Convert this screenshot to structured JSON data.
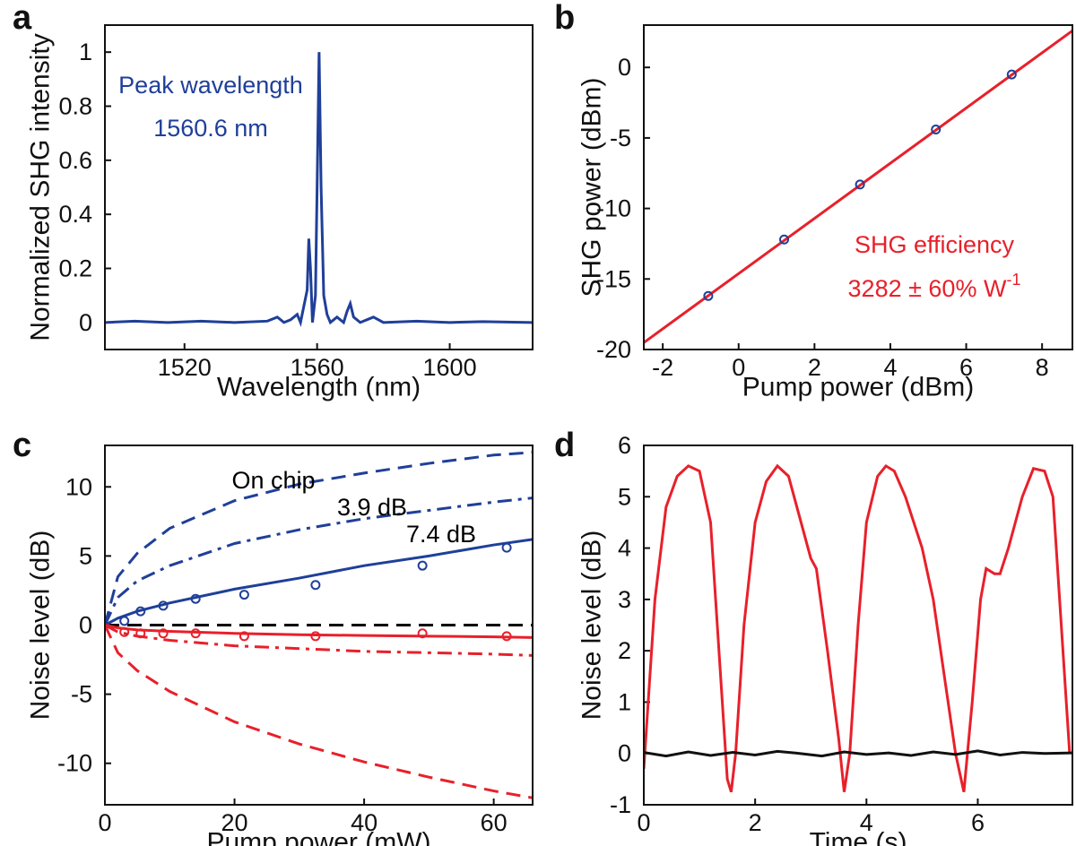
{
  "chart_data": [
    {
      "type": "line",
      "panel": "a",
      "xlabel": "Wavelength (nm)",
      "ylabel": "Normalized SHG intensity",
      "xlim": [
        1496,
        1625
      ],
      "ylim": [
        -0.1,
        1.1
      ],
      "xticks": [
        1520,
        1560,
        1600
      ],
      "yticks": [
        0,
        0.2,
        0.4,
        0.6,
        0.8,
        1
      ],
      "series": [
        {
          "color": "#1f3f99",
          "style": "solid",
          "marker": "none",
          "x": [
            1496,
            1505,
            1515,
            1525,
            1535,
            1545,
            1548,
            1550,
            1552,
            1554,
            1555,
            1556,
            1557,
            1557.5,
            1558,
            1558.6,
            1559.5,
            1560,
            1560.6,
            1561.2,
            1562,
            1563,
            1564,
            1566,
            1568,
            1569,
            1570,
            1571,
            1573,
            1575,
            1577,
            1580,
            1590,
            1600,
            1610,
            1625
          ],
          "values": [
            0,
            0.005,
            0,
            0.005,
            0,
            0.005,
            0.02,
            0,
            0.01,
            0.03,
            0,
            0.06,
            0.12,
            0.31,
            0.2,
            0,
            0.1,
            0.5,
            1,
            0.5,
            0.1,
            0.03,
            0,
            0.02,
            0,
            0.04,
            0.07,
            0.02,
            0,
            0.01,
            0.02,
            0,
            0.005,
            0,
            0.003,
            0
          ]
        }
      ],
      "annotations": [
        {
          "text": "Peak wavelength",
          "color": "#1f3f99"
        },
        {
          "text": "1560.6 nm",
          "color": "#1f3f99"
        }
      ]
    },
    {
      "type": "scatter",
      "panel": "b",
      "xlabel": "Pump power (dBm)",
      "ylabel": "SHG power (dBm)",
      "xlim": [
        -2.5,
        8.8
      ],
      "ylim": [
        -20,
        3
      ],
      "xticks": [
        -2,
        0,
        2,
        4,
        6,
        8
      ],
      "yticks": [
        -20,
        -15,
        -10,
        -5,
        0
      ],
      "series": [
        {
          "color": "#e8202a",
          "style": "solid",
          "marker": "none",
          "x": [
            -2.75,
            8.8
          ],
          "values": [
            -20,
            2.6
          ]
        },
        {
          "color": "#1f3f99",
          "style": "none",
          "marker": "circle",
          "x": [
            -0.8,
            1.2,
            3.2,
            5.2,
            7.2
          ],
          "values": [
            -16.2,
            -12.2,
            -8.3,
            -4.4,
            -0.5
          ]
        }
      ],
      "annotations": [
        {
          "text": "SHG efficiency",
          "color": "#e8202a"
        },
        {
          "text": "3282 ± 60% W",
          "sup": "-1",
          "color": "#e8202a"
        }
      ]
    },
    {
      "type": "line",
      "panel": "c",
      "xlabel": "Pump power (mW)",
      "ylabel": "Noise level (dB)",
      "xlim": [
        0,
        66
      ],
      "ylim": [
        -13,
        13
      ],
      "xticks": [
        0,
        20,
        40,
        60
      ],
      "yticks": [
        -10,
        -5,
        0,
        5,
        10
      ],
      "series": [
        {
          "color": "#000000",
          "style": "dashed",
          "marker": "none",
          "x": [
            0,
            66
          ],
          "values": [
            0,
            0
          ]
        },
        {
          "color": "#1f3f99",
          "style": "dashed",
          "marker": "none",
          "x": [
            0,
            2,
            5,
            10,
            20,
            30,
            40,
            50,
            60,
            66
          ],
          "values": [
            0,
            3.5,
            5.2,
            7,
            9,
            10.2,
            11,
            11.7,
            12.3,
            12.5
          ]
        },
        {
          "color": "#1f3f99",
          "style": "dashdot",
          "marker": "none",
          "x": [
            0,
            2,
            5,
            10,
            20,
            30,
            40,
            50,
            60,
            66
          ],
          "values": [
            0,
            2,
            3.2,
            4.3,
            5.9,
            6.9,
            7.7,
            8.3,
            8.9,
            9.2
          ]
        },
        {
          "color": "#1f3f99",
          "style": "solid",
          "marker": "none",
          "x": [
            0,
            2,
            5,
            10,
            20,
            30,
            40,
            50,
            60,
            66
          ],
          "values": [
            0,
            0.5,
            1,
            1.6,
            2.6,
            3.4,
            4.3,
            5,
            5.8,
            6.2
          ]
        },
        {
          "color": "#e8202a",
          "style": "dashed",
          "marker": "none",
          "x": [
            0,
            2,
            5,
            10,
            20,
            30,
            40,
            50,
            60,
            66
          ],
          "values": [
            0,
            -2,
            -3.3,
            -4.8,
            -7,
            -8.6,
            -9.9,
            -11,
            -12,
            -12.5
          ]
        },
        {
          "color": "#e8202a",
          "style": "dashdot",
          "marker": "none",
          "x": [
            0,
            2,
            5,
            10,
            20,
            30,
            40,
            50,
            60,
            66
          ],
          "values": [
            0,
            -0.5,
            -0.8,
            -1.1,
            -1.5,
            -1.7,
            -1.9,
            -2,
            -2.1,
            -2.2
          ]
        },
        {
          "color": "#e8202a",
          "style": "solid",
          "marker": "none",
          "x": [
            0,
            2,
            5,
            10,
            20,
            30,
            40,
            50,
            60,
            66
          ],
          "values": [
            0,
            -0.2,
            -0.35,
            -0.45,
            -0.6,
            -0.7,
            -0.75,
            -0.8,
            -0.85,
            -0.9
          ]
        },
        {
          "color": "#1f3f99",
          "style": "none",
          "marker": "circle",
          "x": [
            3,
            5.5,
            9,
            14,
            21.5,
            32.5,
            49,
            62
          ],
          "values": [
            0.3,
            1,
            1.4,
            1.9,
            2.2,
            2.9,
            4.3,
            5.6
          ]
        },
        {
          "color": "#e8202a",
          "style": "none",
          "marker": "circle",
          "x": [
            3,
            5.5,
            9,
            14,
            21.5,
            32.5,
            49,
            62
          ],
          "values": [
            -0.5,
            -0.6,
            -0.6,
            -0.6,
            -0.8,
            -0.8,
            -0.6,
            -0.8
          ]
        }
      ],
      "annotations": [
        {
          "text": "On chip",
          "color": "#000000"
        },
        {
          "text": "3.9 dB",
          "color": "#000000"
        },
        {
          "text": "7.4 dB",
          "color": "#000000"
        }
      ]
    },
    {
      "type": "line",
      "panel": "d",
      "xlabel": "Time (s)",
      "ylabel": "Noise level (dB)",
      "xlim": [
        0,
        7.7
      ],
      "ylim": [
        -1,
        6
      ],
      "xticks": [
        0,
        2,
        4,
        6
      ],
      "yticks": [
        -1,
        0,
        1,
        2,
        3,
        4,
        5,
        6
      ],
      "series": [
        {
          "color": "#e8202a",
          "style": "solid",
          "marker": "none",
          "x": [
            0,
            0.2,
            0.4,
            0.6,
            0.8,
            1.0,
            1.2,
            1.35,
            1.5,
            1.57,
            1.65,
            1.8,
            2.0,
            2.2,
            2.4,
            2.6,
            2.8,
            3.0,
            3.1,
            3.3,
            3.5,
            3.6,
            3.7,
            3.85,
            4.0,
            4.2,
            4.35,
            4.5,
            4.7,
            5.0,
            5.2,
            5.4,
            5.6,
            5.75,
            5.9,
            6.05,
            6.15,
            6.3,
            6.4,
            6.55,
            6.8,
            7.0,
            7.2,
            7.35,
            7.5,
            7.65
          ],
          "values": [
            -0.3,
            3,
            4.8,
            5.4,
            5.6,
            5.5,
            4.5,
            2,
            -0.5,
            -0.75,
            0,
            2.5,
            4.5,
            5.3,
            5.6,
            5.4,
            4.6,
            3.8,
            3.6,
            2,
            0.3,
            -0.75,
            0,
            2.5,
            4.5,
            5.4,
            5.6,
            5.5,
            5,
            4,
            3,
            1.5,
            0,
            -0.75,
            1,
            3,
            3.6,
            3.5,
            3.5,
            4,
            5,
            5.55,
            5.5,
            5,
            2.5,
            0
          ]
        },
        {
          "color": "#111111",
          "style": "solid",
          "marker": "none",
          "x": [
            0,
            0.4,
            0.8,
            1.2,
            1.6,
            2.0,
            2.4,
            2.8,
            3.2,
            3.6,
            4.0,
            4.4,
            4.8,
            5.2,
            5.6,
            6.0,
            6.4,
            6.8,
            7.2,
            7.7
          ],
          "values": [
            0.02,
            -0.05,
            0.03,
            -0.04,
            0.02,
            -0.03,
            0.04,
            0,
            -0.05,
            0.03,
            -0.02,
            0.01,
            -0.04,
            0.03,
            -0.02,
            0.05,
            -0.03,
            0.02,
            0,
            0.01
          ]
        }
      ],
      "annotations": []
    }
  ]
}
